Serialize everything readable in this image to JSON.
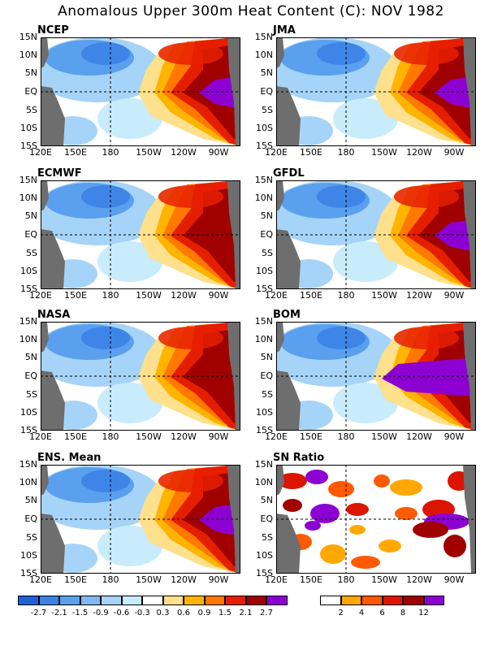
{
  "title": "Anomalous Upper 300m Heat Content (C): NOV 1982",
  "panels": [
    {
      "name": "NCEP"
    },
    {
      "name": "JMA"
    },
    {
      "name": "ECMWF"
    },
    {
      "name": "GFDL"
    },
    {
      "name": "NASA"
    },
    {
      "name": "BOM"
    },
    {
      "name": "ENS. Mean"
    },
    {
      "name": "SN Ratio"
    }
  ],
  "lat_labels": [
    "15N",
    "10N",
    "5N",
    "EQ",
    "5S",
    "10S",
    "15S"
  ],
  "lon_labels": [
    "120E",
    "150E",
    "180",
    "150W",
    "120W",
    "90W"
  ],
  "anomaly_legend": {
    "ticks": [
      "-2.7",
      "-2.1",
      "-1.5",
      "-0.9",
      "-0.6",
      "-0.3",
      "0.3",
      "0.6",
      "0.9",
      "1.5",
      "2.1",
      "2.7"
    ],
    "colors": [
      "#1e60d8",
      "#3c82e6",
      "#5aa0ee",
      "#82b8f2",
      "#a6d4f8",
      "#c8ecfc",
      "#ffffff",
      "#ffe08c",
      "#ffb400",
      "#ff7800",
      "#e61e00",
      "#a00000",
      "#8c00d2"
    ]
  },
  "snr_legend": {
    "ticks": [
      "2",
      "4",
      "6",
      "8",
      "12"
    ],
    "colors": [
      "#ffffff",
      "#ffa800",
      "#ff5a00",
      "#dc1400",
      "#a00000",
      "#8c00d2"
    ]
  },
  "land_color": "#6e6e6e"
}
